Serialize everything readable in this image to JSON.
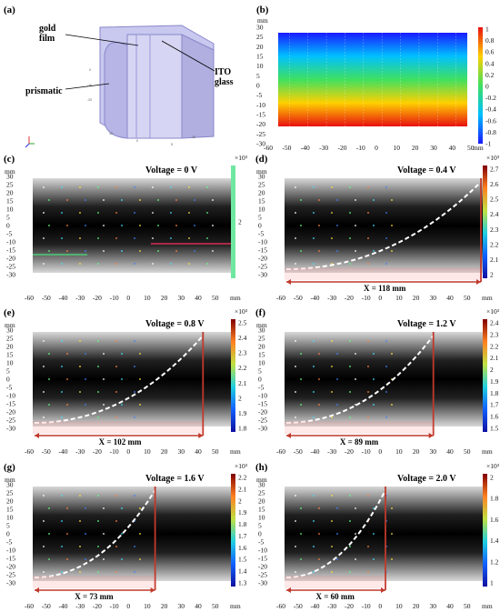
{
  "panel_labels": [
    "(a)",
    "(b)",
    "(c)",
    "(d)",
    "(e)",
    "(f)",
    "(g)",
    "(h)"
  ],
  "panel_a": {
    "gold_film_line1": "gold",
    "gold_film_line2": "film",
    "ito_line1": "ITO",
    "ito_line2": "glass",
    "prismatic": "prismatic"
  },
  "axis_unit": "mm",
  "y_ticks": [
    "30",
    "25",
    "20",
    "15",
    "10",
    "5",
    "0",
    "-5",
    "-10",
    "-15",
    "-20",
    "-25",
    "-30"
  ],
  "x_ticks": [
    "-60",
    "-50",
    "-40",
    "-30",
    "-20",
    "-10",
    "0",
    "10",
    "20",
    "30",
    "40",
    "50"
  ],
  "panel_b_colorbar": [
    "1",
    "0.8",
    "0.6",
    "0.4",
    "0.2",
    "0",
    "-0.2",
    "-0.4",
    "-0.6",
    "-0.8",
    "-1"
  ],
  "multiplier": "×10³",
  "panels": [
    {
      "id": "c",
      "voltage": "Voltage = 0 V",
      "colorbar": [
        "2"
      ],
      "has_curve": false,
      "x_value": null,
      "x_label": ""
    },
    {
      "id": "d",
      "voltage": "Voltage = 0.4 V",
      "colorbar": [
        "2.7",
        "2.6",
        "2.5",
        "2.4",
        "2.3",
        "2.2",
        "2.1",
        "2"
      ],
      "has_curve": true,
      "x_value": 118,
      "x_label": "X = 118 mm"
    },
    {
      "id": "e",
      "voltage": "Voltage = 0.8 V",
      "colorbar": [
        "2.5",
        "2.4",
        "2.3",
        "2.2",
        "2.1",
        "2",
        "1.9",
        "1.8"
      ],
      "has_curve": true,
      "x_value": 102,
      "x_label": "X = 102 mm"
    },
    {
      "id": "f",
      "voltage": "Voltage = 1.2 V",
      "colorbar": [
        "2.4",
        "2.3",
        "2.2",
        "2.1",
        "2",
        "1.9",
        "1.8",
        "1.7",
        "1.6",
        "1.5"
      ],
      "has_curve": true,
      "x_value": 89,
      "x_label": "X = 89 mm"
    },
    {
      "id": "g",
      "voltage": "Voltage = 1.6 V",
      "colorbar": [
        "2.2",
        "2.1",
        "2",
        "1.9",
        "1.8",
        "1.7",
        "1.6",
        "1.5",
        "1.4",
        "1.3"
      ],
      "has_curve": true,
      "x_value": 73,
      "x_label": "X = 73 mm"
    },
    {
      "id": "h",
      "voltage": "Voltage = 2.0 V",
      "colorbar": [
        "2",
        "1.8",
        "1.6",
        "1.4",
        "1.2",
        "1"
      ],
      "has_curve": true,
      "x_value": 60,
      "x_label": "X = 60 mm"
    }
  ],
  "colors": {
    "red_line": "#c0392b",
    "dashed_curve": "#ffffff",
    "panel_c_colorbar": "#6ee7a0"
  }
}
